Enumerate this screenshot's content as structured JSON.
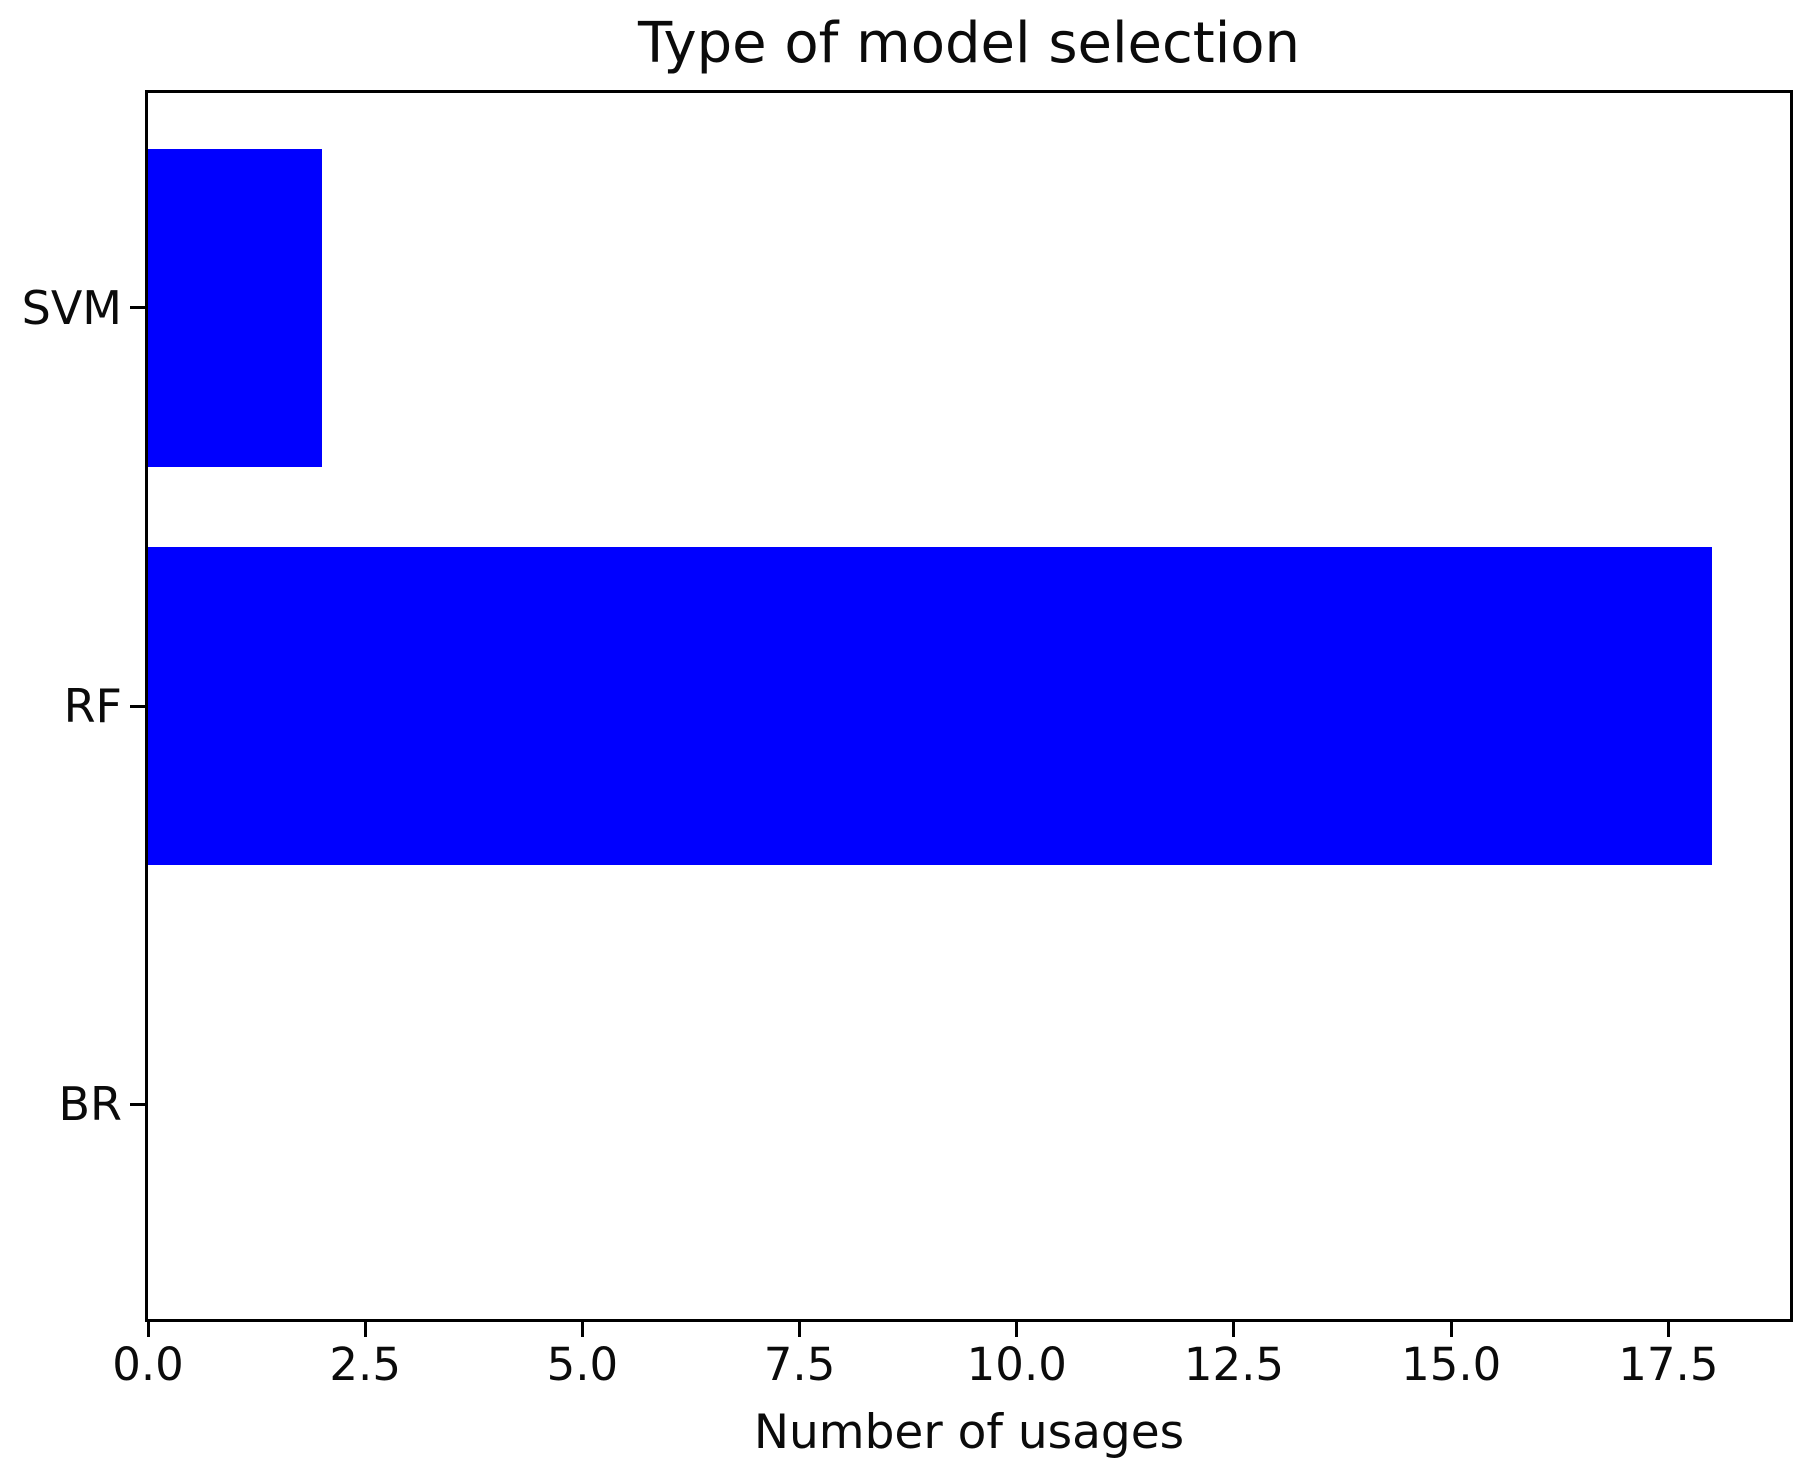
{
  "chart_data": {
    "type": "bar",
    "orientation": "horizontal",
    "title": "Type of model selection",
    "xlabel": "Number of usages",
    "ylabel": "",
    "categories": [
      "SVM",
      "RF",
      "BR"
    ],
    "values": [
      2,
      18,
      0
    ],
    "bar_color": "#0000ff",
    "xlim": [
      0,
      18.9
    ],
    "xticks": [
      0,
      2.5,
      5,
      7.5,
      10,
      12.5,
      15,
      17.5
    ],
    "xtick_labels": [
      "0.0",
      "2.5",
      "5.0",
      "7.5",
      "10.0",
      "12.5",
      "15.0",
      "17.5"
    ],
    "grid": false,
    "legend": "none"
  }
}
